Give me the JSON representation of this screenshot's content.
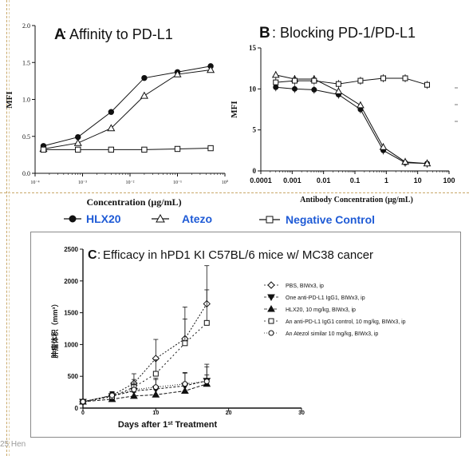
{
  "chart_data": [
    {
      "type": "line",
      "panel_label": "A",
      "title": "Affinity to PD-L1",
      "xlabel": "Concentration (μg/mL)",
      "ylabel": "MFI",
      "x_scale": "log",
      "xlim": [
        0.0001,
        1
      ],
      "ylim": [
        0,
        2.0
      ],
      "x_ticks": [
        "10⁻⁴",
        "10⁻³",
        "10⁻²",
        "10⁻¹",
        "10⁰"
      ],
      "y_ticks": [
        "0.0",
        "0.5",
        "1.0",
        "1.5",
        "2.0"
      ],
      "x": [
        0.00015,
        0.0008,
        0.004,
        0.02,
        0.1,
        0.5
      ],
      "series": [
        {
          "name": "HLX20",
          "marker": "filled-circle",
          "values": [
            0.37,
            0.49,
            0.83,
            1.29,
            1.37,
            1.45
          ]
        },
        {
          "name": "Atezo",
          "marker": "open-triangle",
          "values": [
            0.33,
            0.41,
            0.61,
            1.05,
            1.34,
            1.4
          ]
        },
        {
          "name": "Negative Control",
          "marker": "open-square",
          "values": [
            0.32,
            0.32,
            0.32,
            0.32,
            0.33,
            0.34
          ]
        }
      ]
    },
    {
      "type": "line",
      "panel_label": "B",
      "title": "Blocking PD-1/PD-L1",
      "xlabel": "Antibody Concentration (μg/mL)",
      "ylabel": "MFI",
      "x_scale": "log",
      "xlim": [
        0.0001,
        100
      ],
      "ylim": [
        0,
        15
      ],
      "x_ticks": [
        "0.0001",
        "0.001",
        "0.01",
        "0.1",
        "1",
        "10",
        "100"
      ],
      "y_ticks": [
        "0",
        "5",
        "10",
        "15"
      ],
      "x": [
        0.0003,
        0.0012,
        0.005,
        0.03,
        0.15,
        0.8,
        4,
        20
      ],
      "series": [
        {
          "name": "HLX20",
          "marker": "filled-circle",
          "values": [
            10.2,
            10.0,
            9.9,
            9.3,
            7.5,
            2.5,
            1.0,
            0.9
          ]
        },
        {
          "name": "Atezo",
          "marker": "open-triangle",
          "values": [
            11.7,
            11.2,
            11.2,
            9.7,
            8.0,
            2.9,
            1.1,
            0.9
          ]
        },
        {
          "name": "Negative Control",
          "marker": "open-square",
          "values": [
            10.8,
            11.0,
            11.0,
            10.6,
            11.0,
            11.3,
            11.3,
            10.5
          ]
        }
      ]
    },
    {
      "type": "line",
      "panel_label": "C",
      "title": "Efficacy in hPD1 KI C57BL/6 mice w/ MC38 cancer",
      "xlabel_parts": [
        "Days after 1",
        "st",
        " Treatment"
      ],
      "ylabel": "肿瘤体积（mm³）",
      "xlim": [
        0,
        30
      ],
      "ylim": [
        0,
        2500
      ],
      "x_ticks": [
        "0",
        "10",
        "20",
        "30"
      ],
      "y_ticks": [
        "0",
        "500",
        "1000",
        "1500",
        "2000",
        "2500"
      ],
      "x": [
        0,
        4,
        7,
        10,
        14,
        17
      ],
      "series": [
        {
          "name": "PBS, BIWx3,  ip",
          "marker": "open-diamond",
          "values": [
            100,
            200,
            390,
            780,
            1090,
            1640
          ],
          "errors": [
            30,
            50,
            150,
            300,
            500,
            600
          ]
        },
        {
          "name": "One anti-PD-L1 IgG1, BIWx3, ip",
          "marker": "filled-down-triangle",
          "values": [
            100,
            190,
            270,
            300,
            350,
            430
          ],
          "errors": [
            30,
            60,
            100,
            150,
            200,
            260
          ]
        },
        {
          "name": "HLX20, 10 mg/kg, BIWx3, ip",
          "marker": "filled-triangle",
          "values": [
            100,
            140,
            190,
            210,
            270,
            380
          ],
          "errors": [
            20,
            40,
            60,
            80,
            100,
            140
          ]
        },
        {
          "name": "An anti-PD-L1 IgG1 control,  10 mg/kg, BIWx3, ip",
          "marker": "open-square",
          "values": [
            100,
            180,
            330,
            540,
            1020,
            1340
          ],
          "errors": [
            30,
            60,
            120,
            220,
            380,
            520
          ]
        },
        {
          "name": "An Atezol similar 10 mg/kg, BIWx3, ip",
          "marker": "open-circle",
          "values": [
            100,
            200,
            290,
            330,
            380,
            420
          ],
          "errors": [
            30,
            60,
            100,
            140,
            180,
            230
          ]
        }
      ]
    }
  ],
  "legend_ab": [
    {
      "label": "HLX20",
      "marker": "filled-circle"
    },
    {
      "label": "Atezo",
      "marker": "open-triangle"
    },
    {
      "label": "Negative Control",
      "marker": "open-square"
    }
  ],
  "colors": {
    "legend_text": "#1f5bd6",
    "ink": "#111111",
    "guide": "#c9a86a"
  },
  "footer": "25 Hen"
}
